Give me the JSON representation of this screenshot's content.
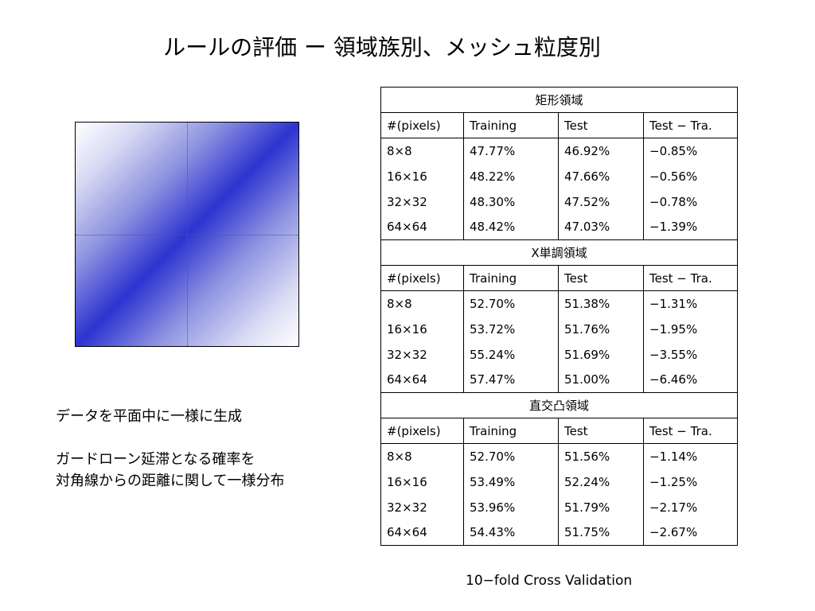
{
  "title": "ルールの評価 ー 領域族別、メッシュ粒度別",
  "description": {
    "line1": "データを平面中に一様に生成",
    "line2": "ガードローン延滞となる確率を",
    "line3": "対角線からの距離に関して一様分布"
  },
  "colors": {
    "gradient_peak": "#2c33d0",
    "background": "#ffffff"
  },
  "table": {
    "columns": [
      "#(pixels)",
      "Training",
      "Test",
      "Test − Tra."
    ],
    "sections": [
      {
        "name": "矩形領域",
        "rows": [
          [
            "8×8",
            "47.77%",
            "46.92%",
            "−0.85%"
          ],
          [
            "16×16",
            "48.22%",
            "47.66%",
            "−0.56%"
          ],
          [
            "32×32",
            "48.30%",
            "47.52%",
            "−0.78%"
          ],
          [
            "64×64",
            "48.42%",
            "47.03%",
            "−1.39%"
          ]
        ]
      },
      {
        "name": "X単調領域",
        "rows": [
          [
            "8×8",
            "52.70%",
            "51.38%",
            "−1.31%"
          ],
          [
            "16×16",
            "53.72%",
            "51.76%",
            "−1.95%"
          ],
          [
            "32×32",
            "55.24%",
            "51.69%",
            "−3.55%"
          ],
          [
            "64×64",
            "57.47%",
            "51.00%",
            "−6.46%"
          ]
        ]
      },
      {
        "name": "直交凸領域",
        "rows": [
          [
            "8×8",
            "52.70%",
            "51.56%",
            "−1.14%"
          ],
          [
            "16×16",
            "53.49%",
            "52.24%",
            "−1.25%"
          ],
          [
            "32×32",
            "53.96%",
            "51.79%",
            "−2.17%"
          ],
          [
            "64×64",
            "54.43%",
            "51.75%",
            "−2.67%"
          ]
        ]
      }
    ]
  },
  "footnote": "10−fold Cross Validation"
}
